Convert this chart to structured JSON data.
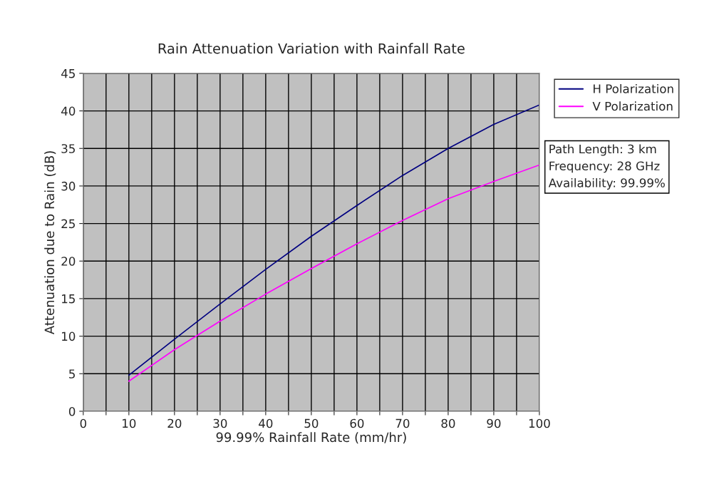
{
  "chart_data": {
    "type": "line",
    "title": "Rain Attenuation Variation with Rainfall Rate",
    "xlabel": "99.99% Rainfall Rate (mm/hr)",
    "ylabel": "Attenuation due to Rain (dB)",
    "x": [
      10,
      20,
      30,
      40,
      50,
      60,
      70,
      80,
      90,
      100
    ],
    "series": [
      {
        "name": "H Polarization",
        "color": "#000080",
        "values": [
          4.8,
          9.6,
          14.3,
          18.9,
          23.3,
          27.4,
          31.4,
          35.0,
          38.2,
          40.8
        ]
      },
      {
        "name": "V Polarization",
        "color": "#ff00ff",
        "values": [
          4.0,
          8.2,
          12.0,
          15.6,
          19.0,
          22.3,
          25.4,
          28.3,
          30.6,
          32.8
        ]
      }
    ],
    "xlim": [
      0,
      100
    ],
    "xticks": [
      0,
      {
        "value": 5,
        "label": null
      },
      10,
      {
        "value": 15,
        "label": null
      },
      20,
      {
        "value": 25,
        "label": null
      },
      30,
      {
        "value": 35,
        "label": null
      },
      40,
      {
        "value": 45,
        "label": null
      },
      50,
      {
        "value": 55,
        "label": null
      },
      60,
      {
        "value": 65,
        "label": null
      },
      70,
      {
        "value": 75,
        "label": null
      },
      80,
      {
        "value": 85,
        "label": null
      },
      90,
      {
        "value": 95,
        "label": null
      },
      100
    ],
    "ylim": [
      0,
      45
    ],
    "yticks": [
      0,
      5,
      10,
      15,
      20,
      25,
      30,
      35,
      40,
      45
    ],
    "grid": true,
    "legend": "right",
    "marker": "none",
    "line_style": "solid",
    "annotations": [
      "Path Length: 3 km\nFrequency: 28 GHz\nAvailability: 99.99%"
    ]
  }
}
